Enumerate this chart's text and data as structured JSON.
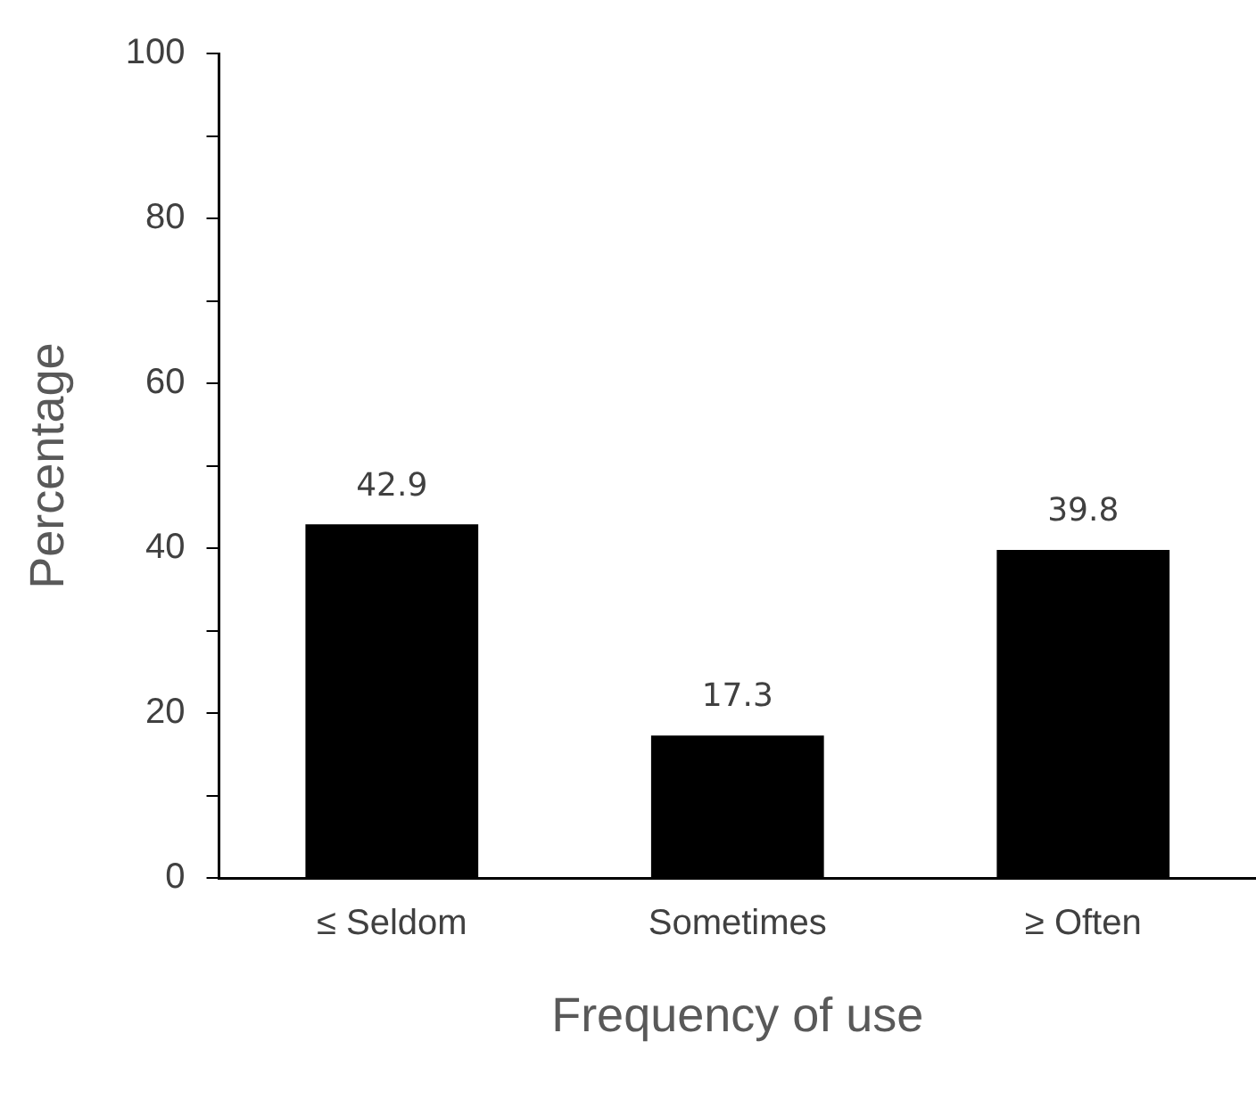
{
  "chart_data": {
    "type": "bar",
    "xlabel": "Frequency of use",
    "ylabel": "Percentage",
    "categories": [
      "≤ Seldom",
      "Sometimes",
      "≥ Often"
    ],
    "values": [
      42.9,
      17.3,
      39.8
    ],
    "color": "#000000",
    "ylim": [
      0,
      100
    ],
    "yticks": [
      0,
      {
        "value": 10,
        "label": null
      },
      20,
      {
        "value": 30,
        "label": null
      },
      40,
      {
        "value": 50,
        "label": null
      },
      60,
      {
        "value": 70,
        "label": null
      },
      80,
      {
        "value": 90,
        "label": null
      },
      100
    ],
    "data_labels": true,
    "grid": false,
    "legend": false
  }
}
